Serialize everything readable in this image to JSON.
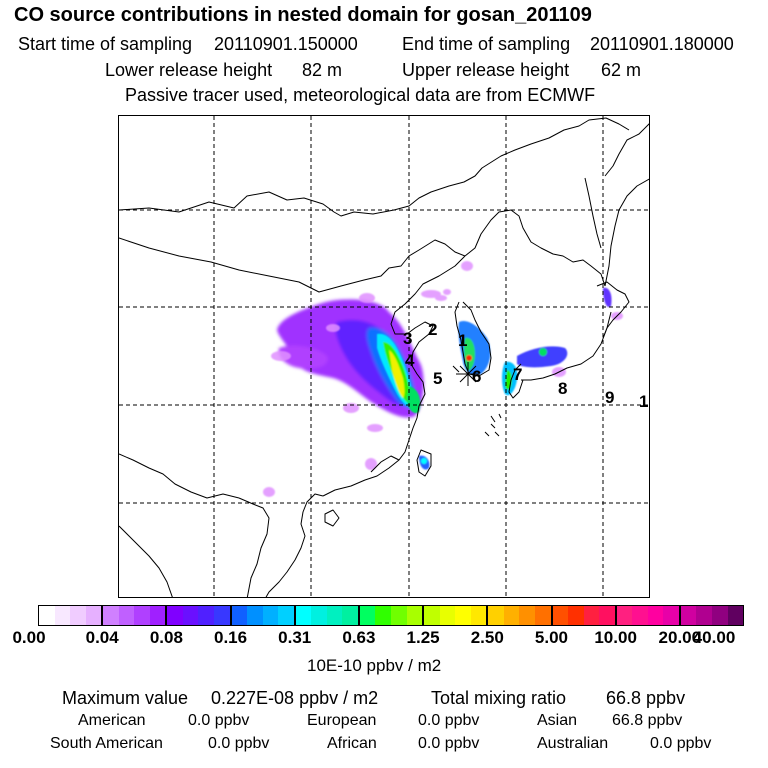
{
  "header": {
    "title": "CO  source contributions in nested domain for gosan_201109",
    "start_label": "Start time of sampling",
    "start_value": "20110901.150000",
    "end_label": "End time of sampling",
    "end_value": "20110901.180000",
    "lower_label": "Lower release height",
    "lower_value": "82 m",
    "upper_label": "Upper release height",
    "upper_value": "62 m",
    "tracer_note": "Passive tracer used, meteorological data are from ECMWF"
  },
  "map": {
    "region_labels": [
      "1",
      "2",
      "3",
      "4",
      "5",
      "6",
      "7",
      "8",
      "9",
      "1"
    ],
    "receptor_marker": "star-icon"
  },
  "legend": {
    "ticks": [
      "0.00",
      "0.04",
      "0.08",
      "0.16",
      "0.31",
      "0.63",
      "1.25",
      "2.50",
      "5.00",
      "10.00",
      "20.00",
      "40.00"
    ],
    "unit": "10E-10 ppbv / m2",
    "blocks": [
      [
        "#ffffff",
        "#f8e8ff",
        "#f0ccff",
        "#e6b0ff"
      ],
      [
        "#d080ff",
        "#c060ff",
        "#b040ff",
        "#a020ff"
      ],
      [
        "#8000ff",
        "#6a10ff",
        "#5020ff",
        "#3838ff"
      ],
      [
        "#1060ff",
        "#0090ff",
        "#00b0ff",
        "#00d0ff"
      ],
      [
        "#00ffff",
        "#00f0e0",
        "#00f0c0",
        "#00f0a0"
      ],
      [
        "#00ff60",
        "#30ff00",
        "#70ff00",
        "#a8ff00"
      ],
      [
        "#c0ff00",
        "#e8ff00",
        "#ffff00",
        "#ffe800"
      ],
      [
        "#ffd000",
        "#ffb000",
        "#ff9000",
        "#ff7000"
      ],
      [
        "#ff5000",
        "#ff3000",
        "#ff2040",
        "#ff1060"
      ],
      [
        "#ff2080",
        "#ff1090",
        "#ff00a0",
        "#e800a8"
      ],
      [
        "#d000a0",
        "#b00090",
        "#900080",
        "#600060"
      ]
    ]
  },
  "stats": {
    "max_label": "Maximum value",
    "max_value": "0.227E-08 ppbv / m2",
    "total_label": "Total mixing ratio",
    "total_value": "66.8 ppbv",
    "rows": [
      [
        {
          "name": "American",
          "value": "0.0 ppbv"
        },
        {
          "name": "European",
          "value": "0.0 ppbv"
        },
        {
          "name": "Asian",
          "value": "66.8 ppbv"
        }
      ],
      [
        {
          "name": "South American",
          "value": "0.0 ppbv"
        },
        {
          "name": "African",
          "value": "0.0 ppbv"
        },
        {
          "name": "Australian",
          "value": "0.0 ppbv"
        }
      ]
    ]
  }
}
